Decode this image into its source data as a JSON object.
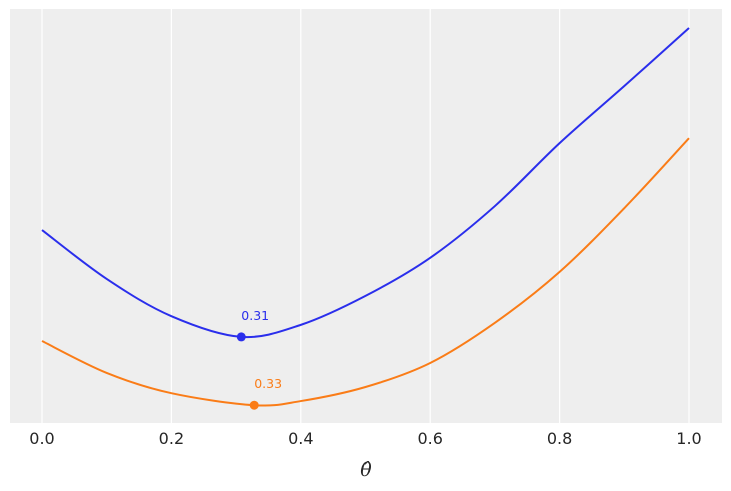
{
  "chart_data": {
    "type": "line",
    "title": "",
    "xlabel": "θ̂",
    "ylabel": "",
    "xlim": [
      -0.05,
      1.05
    ],
    "ylim": [
      0,
      1
    ],
    "grid": "vertical",
    "legend": null,
    "x_ticks": [
      "0.0",
      "0.2",
      "0.4",
      "0.6",
      "0.8",
      "1.0"
    ],
    "y_ticks": [],
    "background": "#eeeeee",
    "series": [
      {
        "name": "blue",
        "color": "#2a2eec",
        "x": [
          0.0,
          0.1,
          0.2,
          0.308,
          0.4,
          0.5,
          0.6,
          0.7,
          0.8,
          0.9,
          1.0
        ],
        "values": [
          0.466,
          0.348,
          0.258,
          0.208,
          0.237,
          0.307,
          0.399,
          0.524,
          0.676,
          0.814,
          0.954
        ],
        "minimum": {
          "x": 0.308,
          "y": 0.208,
          "label": "0.31"
        }
      },
      {
        "name": "orange",
        "color": "#fa7c17",
        "x": [
          0.0,
          0.1,
          0.2,
          0.328,
          0.4,
          0.5,
          0.6,
          0.7,
          0.8,
          0.9,
          1.0
        ],
        "values": [
          0.198,
          0.121,
          0.072,
          0.043,
          0.053,
          0.087,
          0.145,
          0.242,
          0.365,
          0.519,
          0.688
        ],
        "minimum": {
          "x": 0.328,
          "y": 0.043,
          "label": "0.33"
        }
      }
    ]
  }
}
